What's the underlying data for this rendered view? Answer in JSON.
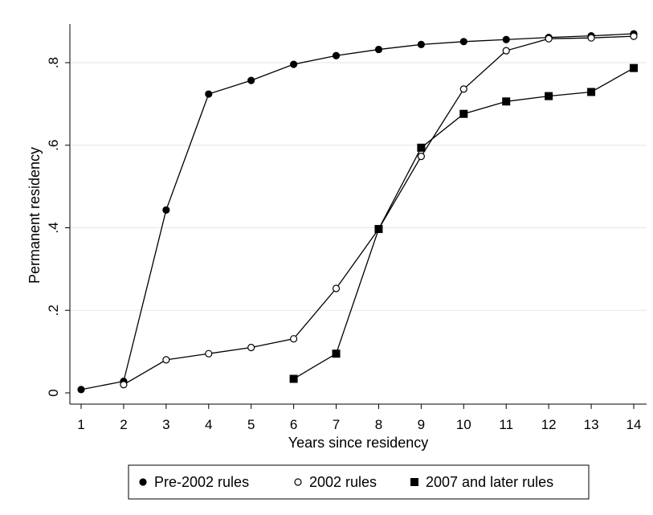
{
  "chart_data": {
    "type": "line",
    "xlabel": "Years since residency",
    "ylabel": "Permanent residency",
    "x": [
      1,
      2,
      3,
      4,
      5,
      6,
      7,
      8,
      9,
      10,
      11,
      12,
      13,
      14
    ],
    "x_ticks": [
      "1",
      "2",
      "3",
      "4",
      "5",
      "6",
      "7",
      "8",
      "9",
      "10",
      "11",
      "12",
      "13",
      "14"
    ],
    "y_ticks": [
      {
        "value": 0,
        "label": "0"
      },
      {
        "value": 0.2,
        "label": ".2"
      },
      {
        "value": 0.4,
        "label": ".4"
      },
      {
        "value": 0.6,
        "label": ".6"
      },
      {
        "value": 0.8,
        "label": ".8"
      }
    ],
    "xlim": [
      0.8,
      14.2
    ],
    "ylim": [
      -0.01,
      0.89
    ],
    "grid": "horizontal",
    "legend_position": "bottom",
    "series": [
      {
        "name": "Pre-2002 rules",
        "marker": "filled-circle",
        "x": [
          1,
          2,
          3,
          4,
          5,
          6,
          7,
          8,
          9,
          10,
          11,
          12,
          13,
          14
        ],
        "values": [
          0.008,
          0.028,
          0.443,
          0.724,
          0.757,
          0.796,
          0.817,
          0.832,
          0.844,
          0.851,
          0.856,
          0.861,
          0.865,
          0.87
        ]
      },
      {
        "name": "2002 rules",
        "marker": "hollow-circle",
        "x": [
          2,
          3,
          4,
          5,
          6,
          7,
          8,
          9,
          10,
          11,
          12,
          13,
          14
        ],
        "values": [
          0.02,
          0.08,
          0.095,
          0.11,
          0.131,
          0.253,
          0.397,
          0.573,
          0.736,
          0.829,
          0.858,
          0.86,
          0.864
        ]
      },
      {
        "name": "2007 and later rules",
        "marker": "filled-square",
        "x": [
          6,
          7,
          8,
          9,
          10,
          11,
          12,
          13,
          14
        ],
        "values": [
          0.034,
          0.095,
          0.397,
          0.594,
          0.676,
          0.706,
          0.719,
          0.729,
          0.787
        ]
      }
    ]
  }
}
